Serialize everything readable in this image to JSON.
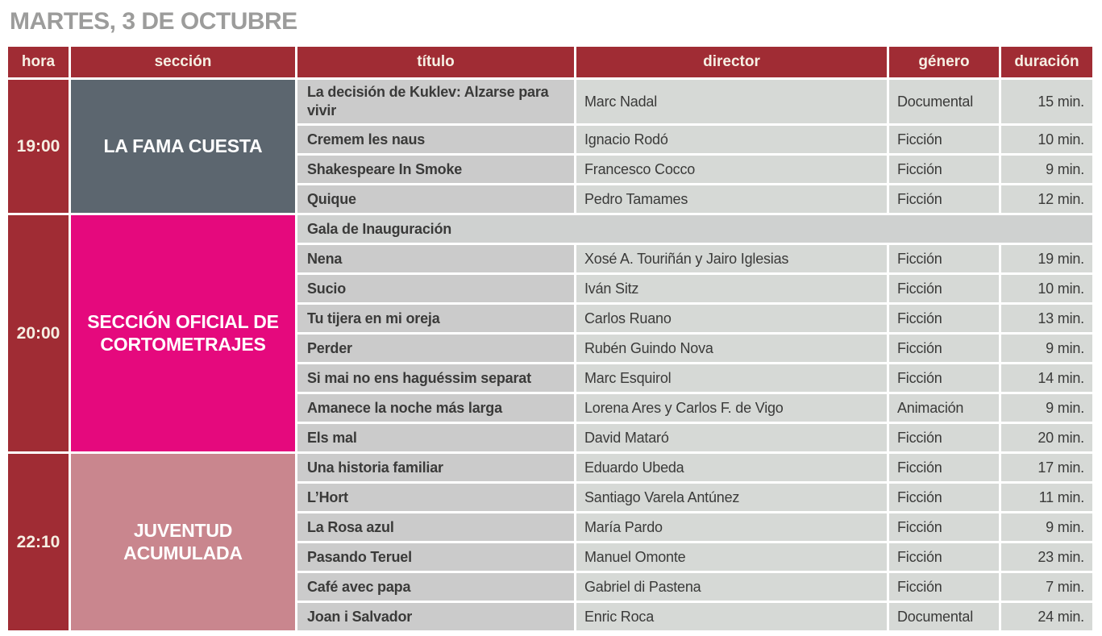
{
  "page_title": "MARTES, 3 DE OCTUBRE",
  "colors": {
    "maroon": "#a02c34",
    "cream": "#f6efe3",
    "title_gray": "#9c9c9b",
    "titulo_cell_bg": "#cbcbcb",
    "data_cell_bg": "#d6d9d6",
    "merged_cell_bg": "#cfd1d0",
    "section_la_fama": "#5c666f",
    "section_oficial": "#e5097d",
    "section_juventud": "#c9868e"
  },
  "table": {
    "headers": [
      "hora",
      "sección",
      "título",
      "director",
      "género",
      "duración"
    ],
    "sections": [
      {
        "time": "19:00",
        "name": "LA FAMA CUESTA",
        "color": "#5c666f",
        "films": [
          {
            "title": "La decisión de Kuklev: Alzarse para vivir",
            "director": "Marc Nadal",
            "genre": "Documental",
            "duration": "15 min."
          },
          {
            "title": "Cremem les naus",
            "director": "Ignacio Rodó",
            "genre": "Ficción",
            "duration": "10 min."
          },
          {
            "title": "Shakespeare In Smoke",
            "director": "Francesco Cocco",
            "genre": "Ficción",
            "duration": "9 min."
          },
          {
            "title": "Quique",
            "director": "Pedro Tamames",
            "genre": "Ficción",
            "duration": "12 min."
          }
        ]
      },
      {
        "time": "20:00",
        "name": "SECCIÓN OFICIAL DE\nCORTOMETRAJES",
        "color": "#e5097d",
        "films": [
          {
            "title": "Gala de Inauguración",
            "merged": true
          },
          {
            "title": "Nena",
            "director": "Xosé A. Touriñán y Jairo Iglesias",
            "genre": "Ficción",
            "duration": "19 min."
          },
          {
            "title": "Sucio",
            "director": "Iván Sitz",
            "genre": "Ficción",
            "duration": "10 min."
          },
          {
            "title": "Tu tijera en mi oreja",
            "director": "Carlos Ruano",
            "genre": "Ficción",
            "duration": "13 min."
          },
          {
            "title": "Perder",
            "director": "Rubén Guindo Nova",
            "genre": "Ficción",
            "duration": "9 min."
          },
          {
            "title": "Si mai no ens haguéssim separat",
            "director": "Marc Esquirol",
            "genre": "Ficción",
            "duration": "14 min."
          },
          {
            "title": "Amanece la noche más larga",
            "director": "Lorena Ares y Carlos F. de Vigo",
            "genre": "Animación",
            "duration": "9 min."
          },
          {
            "title": "Els mal",
            "director": "David Mataró",
            "genre": "Ficción",
            "duration": "20 min."
          }
        ]
      },
      {
        "time": "22:10",
        "name": "JUVENTUD\nACUMULADA",
        "color": "#c9868e",
        "films": [
          {
            "title": "Una historia familiar",
            "director": "Eduardo Ubeda",
            "genre": "Ficción",
            "duration": "17 min."
          },
          {
            "title": "L’Hort",
            "director": "Santiago Varela Antúnez",
            "genre": "Ficción",
            "duration": "11 min."
          },
          {
            "title": "La Rosa azul",
            "director": "María Pardo",
            "genre": "Ficción",
            "duration": "9 min."
          },
          {
            "title": "Pasando Teruel",
            "director": "Manuel Omonte",
            "genre": "Ficción",
            "duration": "23 min."
          },
          {
            "title": "Café avec papa",
            "director": "Gabriel di Pastena",
            "genre": "Ficción",
            "duration": "7 min."
          },
          {
            "title": "Joan i Salvador",
            "director": "Enric Roca",
            "genre": "Documental",
            "duration": "24 min."
          }
        ]
      }
    ]
  }
}
